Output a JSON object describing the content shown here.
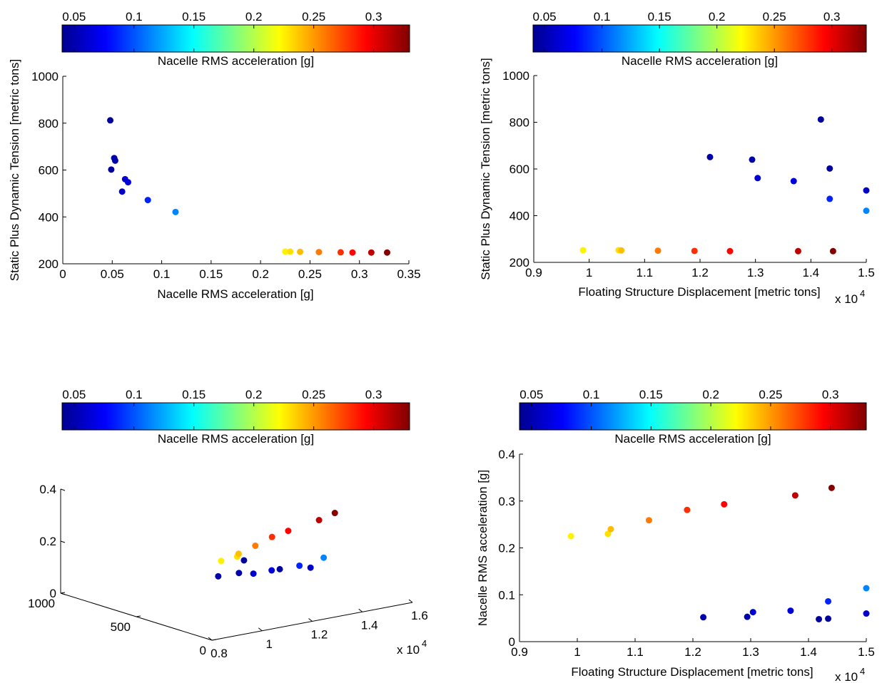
{
  "colorbar": {
    "label": "Nacelle RMS acceleration [g]",
    "tick_labels": [
      "0.05",
      "0.1",
      "0.15",
      "0.2",
      "0.25",
      "0.3"
    ],
    "tick_values": [
      0.05,
      0.1,
      0.15,
      0.2,
      0.25,
      0.3
    ],
    "range": [
      0.04,
      0.33
    ],
    "colormap": "jet"
  },
  "chart_data": [
    {
      "type": "scatter",
      "xlabel": "Nacelle RMS acceleration [g]",
      "ylabel": "Static Plus Dynamic Tension [metric tons]",
      "xlim": [
        0,
        0.35
      ],
      "ylim": [
        200,
        1000
      ],
      "x_ticks": [
        "0",
        "0.05",
        "0.1",
        "0.15",
        "0.2",
        "0.25",
        "0.3",
        "0.35"
      ],
      "y_ticks": [
        "200",
        "400",
        "600",
        "800",
        "1000"
      ],
      "points": [
        {
          "x": 0.048,
          "y": 812,
          "c": 0.048
        },
        {
          "x": 0.049,
          "y": 602,
          "c": 0.049
        },
        {
          "x": 0.052,
          "y": 651,
          "c": 0.052
        },
        {
          "x": 0.053,
          "y": 640,
          "c": 0.053
        },
        {
          "x": 0.06,
          "y": 508,
          "c": 0.06
        },
        {
          "x": 0.063,
          "y": 561,
          "c": 0.063
        },
        {
          "x": 0.066,
          "y": 548,
          "c": 0.066
        },
        {
          "x": 0.086,
          "y": 472,
          "c": 0.086
        },
        {
          "x": 0.114,
          "y": 421,
          "c": 0.114
        },
        {
          "x": 0.225,
          "y": 252,
          "c": 0.225
        },
        {
          "x": 0.23,
          "y": 252,
          "c": 0.23
        },
        {
          "x": 0.24,
          "y": 251,
          "c": 0.24
        },
        {
          "x": 0.259,
          "y": 250,
          "c": 0.259
        },
        {
          "x": 0.281,
          "y": 249,
          "c": 0.281
        },
        {
          "x": 0.293,
          "y": 248,
          "c": 0.293
        },
        {
          "x": 0.312,
          "y": 248,
          "c": 0.312
        },
        {
          "x": 0.328,
          "y": 248,
          "c": 0.328
        }
      ]
    },
    {
      "type": "scatter",
      "xlabel": "Floating Structure Displacement [metric tons]",
      "ylabel": "Static Plus Dynamic Tension [metric tons]",
      "x_multiplier": "x 10",
      "x_exponent": "4",
      "xlim": [
        0.9,
        1.5
      ],
      "ylim": [
        200,
        1000
      ],
      "x_ticks": [
        "0.9",
        "1",
        "1.1",
        "1.2",
        "1.3",
        "1.4",
        "1.5"
      ],
      "y_ticks": [
        "200",
        "400",
        "600",
        "800",
        "1000"
      ],
      "points": [
        {
          "x": 1.218,
          "y": 651,
          "c": 0.052
        },
        {
          "x": 1.294,
          "y": 640,
          "c": 0.053
        },
        {
          "x": 1.304,
          "y": 561,
          "c": 0.063
        },
        {
          "x": 1.369,
          "y": 548,
          "c": 0.066
        },
        {
          "x": 1.418,
          "y": 812,
          "c": 0.048
        },
        {
          "x": 1.434,
          "y": 602,
          "c": 0.049
        },
        {
          "x": 1.434,
          "y": 472,
          "c": 0.086
        },
        {
          "x": 1.5,
          "y": 508,
          "c": 0.06
        },
        {
          "x": 1.5,
          "y": 421,
          "c": 0.114
        },
        {
          "x": 0.989,
          "y": 252,
          "c": 0.225
        },
        {
          "x": 1.053,
          "y": 252,
          "c": 0.23
        },
        {
          "x": 1.058,
          "y": 251,
          "c": 0.24
        },
        {
          "x": 1.124,
          "y": 250,
          "c": 0.259
        },
        {
          "x": 1.19,
          "y": 249,
          "c": 0.281
        },
        {
          "x": 1.254,
          "y": 248,
          "c": 0.293
        },
        {
          "x": 1.377,
          "y": 248,
          "c": 0.312
        },
        {
          "x": 1.44,
          "y": 248,
          "c": 0.328
        }
      ]
    },
    {
      "type": "scatter3d",
      "x_multiplier": "x 10",
      "x_exponent": "4",
      "x_ticks": [
        "0.8",
        "1",
        "1.2",
        "1.4",
        "1.6"
      ],
      "y_ticks": [
        "0",
        "500",
        "1000"
      ],
      "z_ticks": [
        "0",
        "0.2",
        "0.4"
      ],
      "xlim": [
        0.8,
        1.6
      ],
      "ylim": [
        0,
        1000
      ],
      "zlim": [
        0,
        0.4
      ],
      "points": [
        {
          "x": 0.989,
          "y": 252,
          "z": 0.225
        },
        {
          "x": 1.053,
          "y": 252,
          "z": 0.23
        },
        {
          "x": 1.058,
          "y": 251,
          "z": 0.24
        },
        {
          "x": 1.124,
          "y": 250,
          "z": 0.259
        },
        {
          "x": 1.19,
          "y": 249,
          "z": 0.281
        },
        {
          "x": 1.254,
          "y": 248,
          "z": 0.293
        },
        {
          "x": 1.377,
          "y": 248,
          "z": 0.312
        },
        {
          "x": 1.44,
          "y": 248,
          "z": 0.328
        },
        {
          "x": 1.218,
          "y": 651,
          "z": 0.052
        },
        {
          "x": 1.294,
          "y": 640,
          "z": 0.053
        },
        {
          "x": 1.304,
          "y": 561,
          "z": 0.063
        },
        {
          "x": 1.369,
          "y": 548,
          "z": 0.066
        },
        {
          "x": 1.418,
          "y": 812,
          "z": 0.048
        },
        {
          "x": 1.434,
          "y": 602,
          "z": 0.049
        },
        {
          "x": 1.434,
          "y": 472,
          "z": 0.086
        },
        {
          "x": 1.5,
          "y": 508,
          "z": 0.06
        },
        {
          "x": 1.5,
          "y": 421,
          "z": 0.114
        }
      ]
    },
    {
      "type": "scatter",
      "xlabel": "Floating Structure Displacement [metric tons]",
      "ylabel": "Nacelle RMS acceleration [g]",
      "x_multiplier": "x 10",
      "x_exponent": "4",
      "xlim": [
        0.9,
        1.5
      ],
      "ylim": [
        0,
        0.4
      ],
      "x_ticks": [
        "0.9",
        "1",
        "1.1",
        "1.2",
        "1.3",
        "1.4",
        "1.5"
      ],
      "y_ticks": [
        "0",
        "0.1",
        "0.2",
        "0.3",
        "0.4"
      ],
      "points": [
        {
          "x": 0.989,
          "y": 0.225,
          "c": 0.225
        },
        {
          "x": 1.053,
          "y": 0.23,
          "c": 0.23
        },
        {
          "x": 1.058,
          "y": 0.24,
          "c": 0.24
        },
        {
          "x": 1.124,
          "y": 0.259,
          "c": 0.259
        },
        {
          "x": 1.19,
          "y": 0.281,
          "c": 0.281
        },
        {
          "x": 1.254,
          "y": 0.293,
          "c": 0.293
        },
        {
          "x": 1.377,
          "y": 0.312,
          "c": 0.312
        },
        {
          "x": 1.44,
          "y": 0.328,
          "c": 0.328
        },
        {
          "x": 1.218,
          "y": 0.052,
          "c": 0.052
        },
        {
          "x": 1.294,
          "y": 0.053,
          "c": 0.053
        },
        {
          "x": 1.304,
          "y": 0.063,
          "c": 0.063
        },
        {
          "x": 1.369,
          "y": 0.066,
          "c": 0.066
        },
        {
          "x": 1.418,
          "y": 0.048,
          "c": 0.048
        },
        {
          "x": 1.434,
          "y": 0.049,
          "c": 0.049
        },
        {
          "x": 1.434,
          "y": 0.086,
          "c": 0.086
        },
        {
          "x": 1.5,
          "y": 0.06,
          "c": 0.06
        },
        {
          "x": 1.5,
          "y": 0.114,
          "c": 0.114
        }
      ]
    }
  ]
}
